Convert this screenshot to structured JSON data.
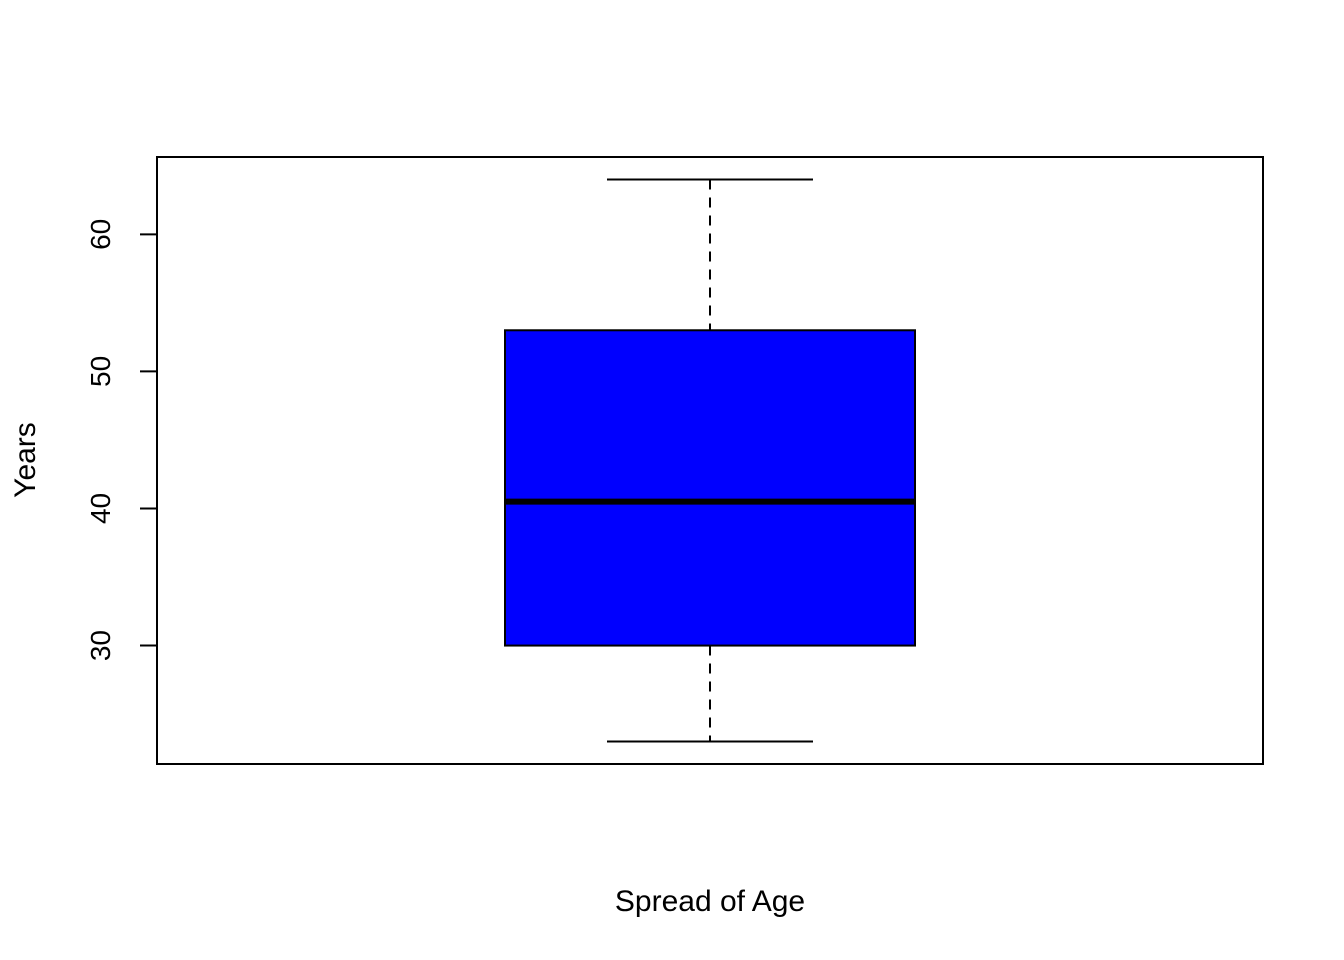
{
  "chart_data": {
    "type": "box",
    "xlabel": "Spread of Age",
    "ylabel": "Years",
    "ylim": [
      21.36,
      65.64
    ],
    "yticks": [
      30,
      40,
      50,
      60
    ],
    "grid": false,
    "box": {
      "min": 23,
      "q1": 30,
      "median": 40.5,
      "q3": 53,
      "max": 64,
      "fill_color": "#0000ff",
      "border_color": "#000000"
    }
  }
}
